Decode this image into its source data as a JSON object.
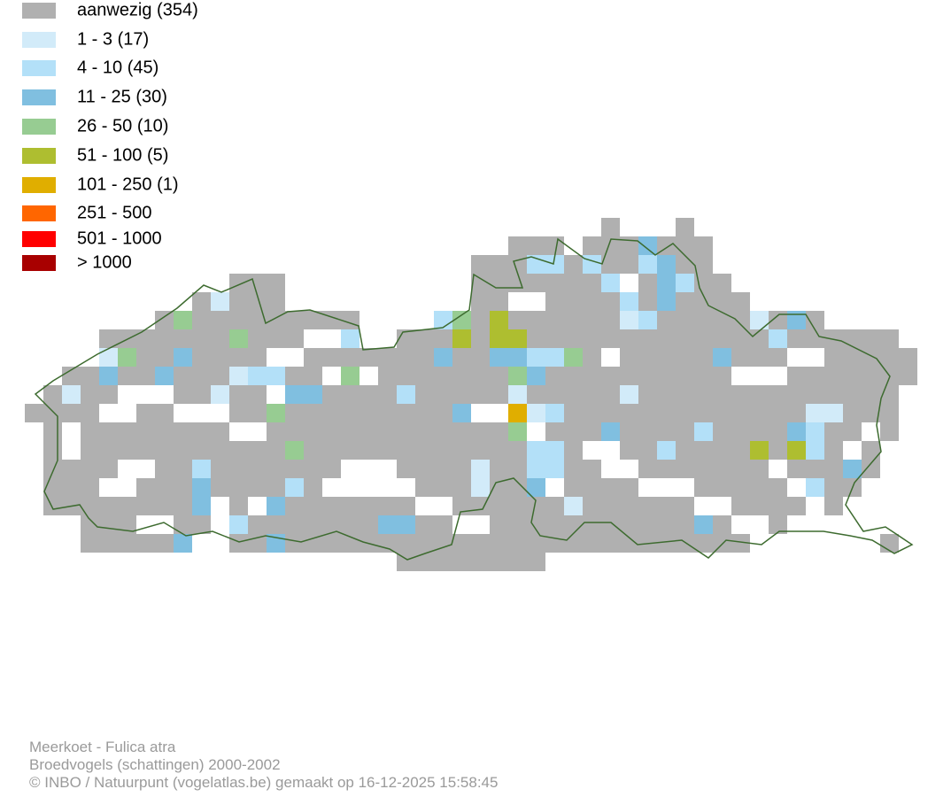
{
  "legend": {
    "items": [
      {
        "label": "aanwezig (354)",
        "color": "#b0b0b0"
      },
      {
        "label": "1 - 3 (17)",
        "color": "#d2ebf9"
      },
      {
        "label": "4 - 10 (45)",
        "color": "#b3e0f8"
      },
      {
        "label": "11 - 25 (30)",
        "color": "#80bfe0"
      },
      {
        "label": "26 - 50 (10)",
        "color": "#97cc92"
      },
      {
        "label": "51 - 100 (5)",
        "color": "#aebe30"
      },
      {
        "label": "101 - 250 (1)",
        "color": "#e0ae00"
      },
      {
        "label": "251 - 500",
        "color": "#ff6600"
      },
      {
        "label": "501 - 1000",
        "color": "#ff0000"
      },
      {
        "label": "> 1000",
        "color": "#a80000"
      }
    ]
  },
  "footer": {
    "lines": [
      "Meerkoet - Fulica atra",
      "Broedvogels (schattingen) 2000-2002",
      "© INBO / Natuurpunt (vogelatlas.be) gemaakt op 16-12-2025 15:58:45"
    ]
  }
}
